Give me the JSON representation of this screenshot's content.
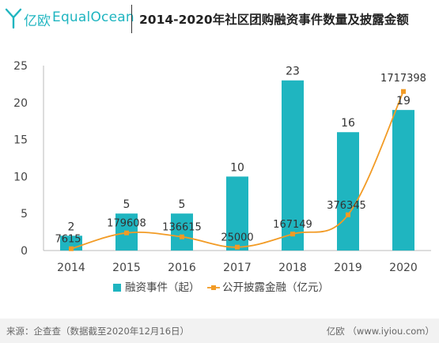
{
  "header": {
    "brand_cn": "亿欧",
    "brand_en": "EqualOcean",
    "title": "2014-2020年社区团购融资事件数量及披露金额"
  },
  "footer": {
    "source": "来源：企查查（数据截至2020年12月16日）",
    "brand": "亿欧 （www.iyiou.com）"
  },
  "colors": {
    "brand": "#1fb5c0",
    "bar": "#1fb5c0",
    "line": "#f29b25"
  },
  "chart_data": {
    "type": "bar",
    "categories": [
      "2014",
      "2015",
      "2016",
      "2017",
      "2018",
      "2019",
      "2020"
    ],
    "ylim": [
      0,
      25
    ],
    "yticks": [
      0,
      5,
      10,
      15,
      20,
      25
    ],
    "grid": false,
    "legend_position": "bottom",
    "series": [
      {
        "name": "融资事件（起）",
        "kind": "bar",
        "values": [
          2,
          5,
          5,
          10,
          23,
          16,
          19
        ],
        "labels": [
          "2",
          "5",
          "5",
          "10",
          "23",
          "16",
          "19"
        ]
      },
      {
        "name": "公开披露金融（亿元）",
        "kind": "line",
        "smooth": true,
        "secondary_axis": true,
        "values": [
          7615,
          179608,
          136615,
          25000,
          167149,
          376345,
          1717398
        ],
        "labels": [
          "7615",
          "179608",
          "136615",
          "25000",
          "167149",
          "376345",
          "1717398"
        ]
      }
    ]
  }
}
